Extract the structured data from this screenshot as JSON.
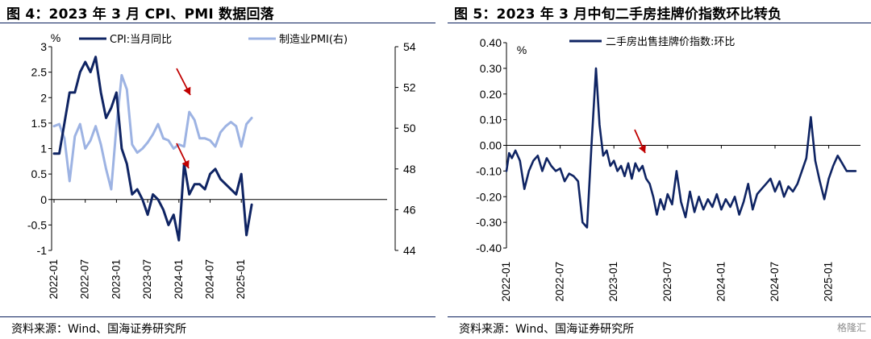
{
  "left": {
    "title": "图 4：2023 年 3 月 CPI、PMI 数据回落",
    "source": "资料来源：Wind、国海证券研究所",
    "chart_data": {
      "type": "line",
      "unit_label": "%",
      "x_ticks": [
        "2022-01",
        "2022-07",
        "2023-01",
        "2023-07",
        "2024-01",
        "2024-07",
        "2025-01"
      ],
      "y_ticks": [
        "-1",
        "-0.5",
        "0",
        "0.5",
        "1",
        "1.5",
        "2",
        "2.5",
        "3"
      ],
      "y_right_ticks": [
        "44",
        "46",
        "48",
        "50",
        "52",
        "54"
      ],
      "ylim": [
        -1,
        3
      ],
      "y_right_lim": [
        44,
        54
      ],
      "grid": false,
      "legend_position": "top",
      "series": [
        {
          "name": "CPI:当月同比",
          "axis": "left",
          "color": "#0f2463",
          "x": [
            "2022-01",
            "2022-02",
            "2022-03",
            "2022-04",
            "2022-05",
            "2022-06",
            "2022-07",
            "2022-08",
            "2022-09",
            "2022-10",
            "2022-11",
            "2022-12",
            "2023-01",
            "2023-02",
            "2023-03",
            "2023-04",
            "2023-05",
            "2023-06",
            "2023-07",
            "2023-08",
            "2023-09",
            "2023-10",
            "2023-11",
            "2023-12",
            "2024-01",
            "2024-02",
            "2024-03",
            "2024-04",
            "2024-05",
            "2024-06",
            "2024-07",
            "2024-08",
            "2024-09",
            "2024-10",
            "2024-11",
            "2024-12",
            "2025-01",
            "2025-02",
            "2025-03"
          ],
          "values": [
            0.9,
            0.9,
            1.5,
            2.1,
            2.1,
            2.5,
            2.7,
            2.5,
            2.8,
            2.1,
            1.6,
            1.8,
            2.1,
            1.0,
            0.7,
            0.1,
            0.2,
            0.0,
            -0.3,
            0.1,
            0.0,
            -0.2,
            -0.5,
            -0.3,
            -0.8,
            0.7,
            0.1,
            0.3,
            0.3,
            0.2,
            0.5,
            0.6,
            0.4,
            0.3,
            0.2,
            0.1,
            0.5,
            -0.7,
            -0.1
          ]
        },
        {
          "name": "制造业PMI(右)",
          "axis": "right",
          "color": "#9db3e3",
          "x": [
            "2022-01",
            "2022-02",
            "2022-03",
            "2022-04",
            "2022-05",
            "2022-06",
            "2022-07",
            "2022-08",
            "2022-09",
            "2022-10",
            "2022-11",
            "2022-12",
            "2023-01",
            "2023-02",
            "2023-03",
            "2023-04",
            "2023-05",
            "2023-06",
            "2023-07",
            "2023-08",
            "2023-09",
            "2023-10",
            "2023-11",
            "2023-12",
            "2024-01",
            "2024-02",
            "2024-03",
            "2024-04",
            "2024-05",
            "2024-06",
            "2024-07",
            "2024-08",
            "2024-09",
            "2024-10",
            "2024-11",
            "2024-12",
            "2025-01",
            "2025-02",
            "2025-03"
          ],
          "values": [
            50.1,
            50.2,
            49.5,
            47.4,
            49.6,
            50.2,
            49.0,
            49.4,
            50.1,
            49.2,
            48.0,
            47.0,
            50.1,
            52.6,
            51.9,
            49.2,
            48.8,
            49.0,
            49.3,
            49.7,
            50.2,
            49.5,
            49.4,
            49.0,
            49.2,
            49.1,
            50.8,
            50.4,
            49.5,
            49.5,
            49.4,
            49.1,
            49.8,
            50.1,
            50.3,
            50.1,
            49.1,
            50.2,
            50.5
          ]
        }
      ]
    }
  },
  "right": {
    "title": "图 5：2023 年 3 月中旬二手房挂牌价指数环比转负",
    "source": "资料来源：Wind、国海证券研究所",
    "chart_data": {
      "type": "line",
      "unit_label": "%",
      "x_ticks": [
        "2022-01",
        "2022-07",
        "2023-01",
        "2023-07",
        "2024-01",
        "2024-07",
        "2025-01"
      ],
      "y_ticks": [
        "0.40",
        "0.30",
        "0.20",
        "0.10",
        "0.00",
        "-0.10",
        "-0.20",
        "-0.30",
        "-0.40"
      ],
      "ylim": [
        -0.4,
        0.4
      ],
      "grid": false,
      "legend_position": "top",
      "series": [
        {
          "name": "二手房出售挂牌价指数:环比",
          "color": "#0f2463",
          "x": [
            0.0,
            0.3,
            0.6,
            1.0,
            1.5,
            2.0,
            2.5,
            3.0,
            3.5,
            4.0,
            4.5,
            5.0,
            5.5,
            6.0,
            6.5,
            7.0,
            7.5,
            8.0,
            8.5,
            9.0,
            9.5,
            10.0,
            10.4,
            10.8,
            11.2,
            11.6,
            12.0,
            12.4,
            12.8,
            13.2,
            13.6,
            14.0,
            14.4,
            14.8,
            15.2,
            15.6,
            16.0,
            16.4,
            16.8,
            17.2,
            17.6,
            18.0,
            18.5,
            19.0,
            19.5,
            20.0,
            20.5,
            21.0,
            21.5,
            22.0,
            22.5,
            23.0,
            23.5,
            24.0,
            24.5,
            25.0,
            25.5,
            26.0,
            26.5,
            27.0,
            27.5,
            28.0,
            28.5,
            29.0,
            29.5,
            30.0,
            30.5,
            31.0,
            31.5,
            32.0,
            32.5,
            33.0,
            33.5,
            34.0,
            34.5,
            35.0,
            35.5,
            36.0,
            36.5,
            37.0,
            37.5,
            38.0,
            38.5,
            39.0
          ],
          "values": [
            -0.1,
            -0.03,
            -0.05,
            -0.02,
            -0.06,
            -0.17,
            -0.1,
            -0.06,
            -0.04,
            -0.1,
            -0.05,
            -0.08,
            -0.1,
            -0.09,
            -0.14,
            -0.11,
            -0.12,
            -0.14,
            -0.3,
            -0.32,
            0.0,
            0.3,
            0.08,
            -0.04,
            -0.02,
            -0.08,
            -0.06,
            -0.1,
            -0.08,
            -0.12,
            -0.07,
            -0.13,
            -0.07,
            -0.1,
            -0.08,
            -0.13,
            -0.15,
            -0.2,
            -0.27,
            -0.21,
            -0.25,
            -0.19,
            -0.23,
            -0.1,
            -0.22,
            -0.28,
            -0.18,
            -0.26,
            -0.2,
            -0.25,
            -0.21,
            -0.24,
            -0.19,
            -0.25,
            -0.21,
            -0.24,
            -0.2,
            -0.27,
            -0.22,
            -0.15,
            -0.25,
            -0.19,
            -0.17,
            -0.15,
            -0.13,
            -0.18,
            -0.14,
            -0.2,
            -0.16,
            -0.18,
            -0.15,
            -0.1,
            -0.05,
            0.11,
            -0.06,
            -0.14,
            -0.21,
            -0.13,
            -0.08,
            -0.04,
            -0.07,
            -0.1,
            -0.1,
            -0.1
          ]
        }
      ]
    }
  },
  "watermark": "格隆汇"
}
